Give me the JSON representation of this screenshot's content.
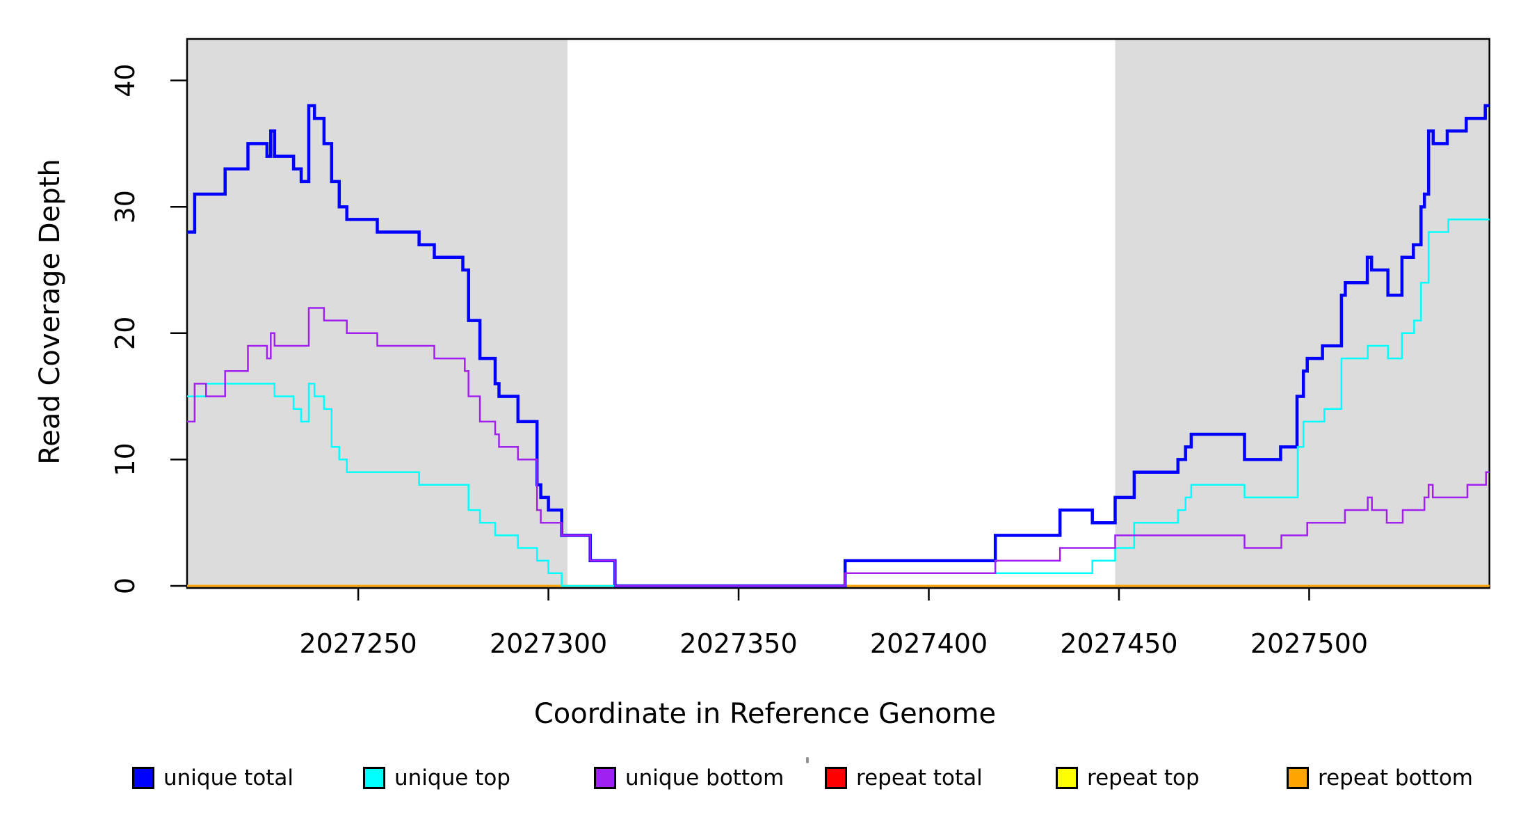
{
  "chart_data": {
    "type": "line",
    "subtype": "step-coverage",
    "xlabel": "Coordinate in Reference Genome",
    "ylabel": "Read Coverage Depth",
    "xlim": [
      2027205,
      2027547.4
    ],
    "ylim": [
      0,
      43.3
    ],
    "grid": false,
    "background_color": "#ffffff",
    "shaded_region_color": "#dcdcdc",
    "shaded_regions": [
      {
        "name": "left-gray-region",
        "x0": 2027205,
        "x1": 2027305
      },
      {
        "name": "right-gray-region",
        "x0": 2027449,
        "x1": 2027547.4
      }
    ],
    "x_ticks": [
      {
        "coord": 2027250,
        "label": "2027250"
      },
      {
        "coord": 2027300,
        "label": "2027300"
      },
      {
        "coord": 2027350,
        "label": "2027350"
      },
      {
        "coord": 2027400,
        "label": "2027400"
      },
      {
        "coord": 2027450,
        "label": "2027450"
      },
      {
        "coord": 2027500,
        "label": "2027500"
      }
    ],
    "y_ticks": [
      {
        "value": 0,
        "label": "0"
      },
      {
        "value": 10,
        "label": "10"
      },
      {
        "value": 20,
        "label": "20"
      },
      {
        "value": 30,
        "label": "30"
      },
      {
        "value": 40,
        "label": "40"
      }
    ],
    "series": [
      {
        "name": "repeat total",
        "color": "#FF0000",
        "width": 3,
        "steps": [
          [
            2027205,
            0
          ]
        ]
      },
      {
        "name": "repeat top",
        "color": "#FFFF00",
        "width": 3,
        "steps": [
          [
            2027205,
            0
          ]
        ]
      },
      {
        "name": "repeat bottom",
        "color": "#FFA500",
        "width": 3,
        "steps": [
          [
            2027205,
            0
          ]
        ]
      },
      {
        "name": "unique total",
        "color": "#0000FF",
        "width": 4.5,
        "steps": [
          [
            2027205,
            28
          ],
          [
            2027207,
            31
          ],
          [
            2027215,
            33
          ],
          [
            2027221,
            35
          ],
          [
            2027226,
            34
          ],
          [
            2027227,
            36
          ],
          [
            2027228,
            34
          ],
          [
            2027233,
            33
          ],
          [
            2027235,
            32
          ],
          [
            2027237,
            38
          ],
          [
            2027238.5,
            37
          ],
          [
            2027241,
            35
          ],
          [
            2027243,
            32
          ],
          [
            2027245,
            30
          ],
          [
            2027247,
            29
          ],
          [
            2027255,
            28
          ],
          [
            2027266,
            27
          ],
          [
            2027270,
            26
          ],
          [
            2027277.5,
            25
          ],
          [
            2027279,
            21
          ],
          [
            2027282,
            18
          ],
          [
            2027286,
            16
          ],
          [
            2027287,
            15
          ],
          [
            2027292,
            13
          ],
          [
            2027297,
            8
          ],
          [
            2027298,
            7
          ],
          [
            2027300,
            6
          ],
          [
            2027303.5,
            4
          ],
          [
            2027311,
            2
          ],
          [
            2027317.5,
            0
          ],
          [
            2027378,
            2
          ],
          [
            2027417.5,
            4
          ],
          [
            2027434.5,
            6
          ],
          [
            2027443,
            5
          ],
          [
            2027449,
            7
          ],
          [
            2027454,
            9
          ],
          [
            2027465.5,
            10
          ],
          [
            2027467.5,
            11
          ],
          [
            2027469,
            12
          ],
          [
            2027483,
            10
          ],
          [
            2027492.5,
            11
          ],
          [
            2027496.8,
            15
          ],
          [
            2027498.5,
            17
          ],
          [
            2027499.5,
            18
          ],
          [
            2027503.5,
            19
          ],
          [
            2027508.5,
            23
          ],
          [
            2027509.5,
            24
          ],
          [
            2027515.3,
            26
          ],
          [
            2027516.4,
            25
          ],
          [
            2027520.7,
            23
          ],
          [
            2027524.4,
            26
          ],
          [
            2027527.4,
            27
          ],
          [
            2027529.4,
            30
          ],
          [
            2027530.3,
            31
          ],
          [
            2027531.4,
            36
          ],
          [
            2027532.6,
            35
          ],
          [
            2027536.3,
            36
          ],
          [
            2027541.3,
            37
          ],
          [
            2027546.3,
            38
          ]
        ]
      },
      {
        "name": "unique top",
        "color": "#00FFFF",
        "width": 2.5,
        "steps": [
          [
            2027205,
            15
          ],
          [
            2027210,
            16
          ],
          [
            2027228,
            15
          ],
          [
            2027233,
            14
          ],
          [
            2027235,
            13
          ],
          [
            2027237,
            16
          ],
          [
            2027238.5,
            15
          ],
          [
            2027241,
            14
          ],
          [
            2027243,
            11
          ],
          [
            2027245,
            10
          ],
          [
            2027247,
            9
          ],
          [
            2027266,
            8
          ],
          [
            2027279,
            6
          ],
          [
            2027282,
            5
          ],
          [
            2027286,
            4
          ],
          [
            2027292,
            3
          ],
          [
            2027297,
            2
          ],
          [
            2027300,
            1
          ],
          [
            2027303.5,
            0
          ],
          [
            2027378,
            1
          ],
          [
            2027443,
            2
          ],
          [
            2027449,
            3
          ],
          [
            2027454,
            5
          ],
          [
            2027465.5,
            6
          ],
          [
            2027467.5,
            7
          ],
          [
            2027469,
            8
          ],
          [
            2027483,
            7
          ],
          [
            2027497,
            11
          ],
          [
            2027498.5,
            13
          ],
          [
            2027504,
            14
          ],
          [
            2027508.5,
            18
          ],
          [
            2027515.4,
            19
          ],
          [
            2027520.7,
            18
          ],
          [
            2027524.4,
            20
          ],
          [
            2027527.6,
            21
          ],
          [
            2027529.4,
            24
          ],
          [
            2027531.4,
            28
          ],
          [
            2027536.6,
            29
          ]
        ]
      },
      {
        "name": "unique bottom",
        "color": "#A020F0",
        "width": 2.5,
        "steps": [
          [
            2027205,
            13
          ],
          [
            2027207,
            16
          ],
          [
            2027210,
            15
          ],
          [
            2027215,
            17
          ],
          [
            2027221,
            19
          ],
          [
            2027226,
            18
          ],
          [
            2027227,
            20
          ],
          [
            2027228,
            19
          ],
          [
            2027237,
            22
          ],
          [
            2027241,
            21
          ],
          [
            2027247,
            20
          ],
          [
            2027255,
            19
          ],
          [
            2027270,
            18
          ],
          [
            2027278,
            17
          ],
          [
            2027279,
            15
          ],
          [
            2027282,
            13
          ],
          [
            2027286,
            12
          ],
          [
            2027287,
            11
          ],
          [
            2027292,
            10
          ],
          [
            2027297,
            6
          ],
          [
            2027298,
            5
          ],
          [
            2027303.5,
            4
          ],
          [
            2027311,
            2
          ],
          [
            2027317.5,
            0
          ],
          [
            2027378,
            1
          ],
          [
            2027417.5,
            2
          ],
          [
            2027434.5,
            3
          ],
          [
            2027449,
            4
          ],
          [
            2027483,
            3
          ],
          [
            2027492.7,
            4
          ],
          [
            2027499.5,
            5
          ],
          [
            2027509.4,
            6
          ],
          [
            2027515.4,
            7
          ],
          [
            2027516.5,
            6
          ],
          [
            2027520.4,
            5
          ],
          [
            2027524.6,
            6
          ],
          [
            2027530.3,
            7
          ],
          [
            2027531.4,
            8
          ],
          [
            2027532.5,
            7
          ],
          [
            2027541.6,
            8
          ],
          [
            2027546.5,
            9
          ]
        ]
      }
    ],
    "legend_position": "bottom"
  },
  "labels": {
    "x_axis_title": "Coordinate in Reference Genome",
    "y_axis_title": "Read Coverage Depth"
  },
  "legend": {
    "items": [
      {
        "label": "unique total",
        "color": "#0000FF"
      },
      {
        "label": "unique top",
        "color": "#00FFFF"
      },
      {
        "label": "unique bottom",
        "color": "#A020F0"
      },
      {
        "label": "repeat total",
        "color": "#FF0000"
      },
      {
        "label": "repeat top",
        "color": "#FFFF00"
      },
      {
        "label": "repeat bottom",
        "color": "#FFA500"
      }
    ]
  },
  "colors": {
    "axis": "#000000",
    "tick_text": "#000000",
    "shaded_region": "#dcdcdc"
  }
}
